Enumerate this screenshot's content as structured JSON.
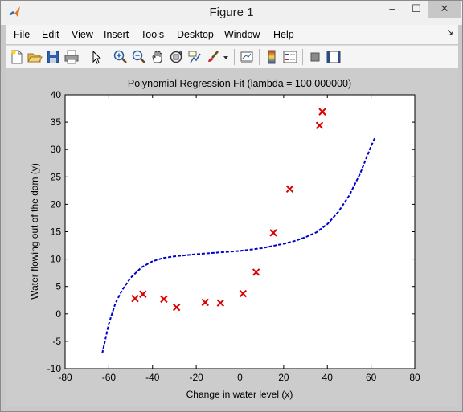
{
  "window": {
    "title": "Figure 1",
    "controls": {
      "minimize": "–",
      "maximize": "☐",
      "close": "✕"
    }
  },
  "menu": {
    "items": [
      "File",
      "Edit",
      "View",
      "Insert",
      "Tools",
      "Desktop",
      "Window",
      "Help"
    ],
    "dock_arrow": "↘"
  },
  "toolbar": {
    "icons": [
      "new-figure-icon",
      "open-file-icon",
      "save-icon",
      "print-icon",
      "select-arrow-icon",
      "zoom-in-icon",
      "zoom-out-icon",
      "pan-hand-icon",
      "rotate-3d-icon",
      "data-cursor-icon",
      "brush-icon",
      "brush-dropdown-icon",
      "link-plot-icon",
      "colorbar-icon",
      "legend-icon",
      "hide-plot-tools-icon",
      "show-plot-tools-icon"
    ]
  },
  "colors": {
    "fit_line": "#0000cc",
    "markers": "#dd0000"
  },
  "chart_data": {
    "type": "scatter",
    "title": "Polynomial Regression Fit (lambda = 100.000000)",
    "xlabel": "Change in water level (x)",
    "ylabel": "Water flowing out of the dam (y)",
    "xlim": [
      -80,
      80
    ],
    "ylim": [
      -10,
      40
    ],
    "xticks": [
      "-80",
      "-60",
      "-40",
      "-20",
      "0",
      "20",
      "40",
      "60",
      "80"
    ],
    "yticks": [
      "-10",
      "-5",
      "0",
      "5",
      "10",
      "15",
      "20",
      "25",
      "30",
      "35",
      "40"
    ],
    "grid": false,
    "series": [
      {
        "style": "markers-x",
        "points": [
          [
            -48,
            2.8
          ],
          [
            -44.4,
            3.6
          ],
          [
            -34.8,
            2.7
          ],
          [
            -29,
            1.2
          ],
          [
            -15.9,
            2.1
          ],
          [
            -8.9,
            2.0
          ],
          [
            1.4,
            3.7
          ],
          [
            7.4,
            7.6
          ],
          [
            15.3,
            14.8
          ],
          [
            22.8,
            22.8
          ],
          [
            36.4,
            34.4
          ],
          [
            37.7,
            36.9
          ]
        ]
      },
      {
        "style": "dashed-line",
        "points": [
          [
            -63,
            -7.2
          ],
          [
            -60,
            -1.8
          ],
          [
            -57,
            1.9
          ],
          [
            -54,
            4.3
          ],
          [
            -50,
            6.6
          ],
          [
            -45,
            8.5
          ],
          [
            -40,
            9.6
          ],
          [
            -35,
            10.2
          ],
          [
            -30,
            10.5
          ],
          [
            -20,
            10.9
          ],
          [
            -10,
            11.2
          ],
          [
            0,
            11.5
          ],
          [
            10,
            12.0
          ],
          [
            20,
            12.8
          ],
          [
            25,
            13.3
          ],
          [
            30,
            14.0
          ],
          [
            35,
            14.9
          ],
          [
            40,
            16.4
          ],
          [
            45,
            18.6
          ],
          [
            50,
            21.6
          ],
          [
            55,
            25.6
          ],
          [
            60,
            30.6
          ],
          [
            62,
            32.4
          ]
        ]
      }
    ]
  }
}
